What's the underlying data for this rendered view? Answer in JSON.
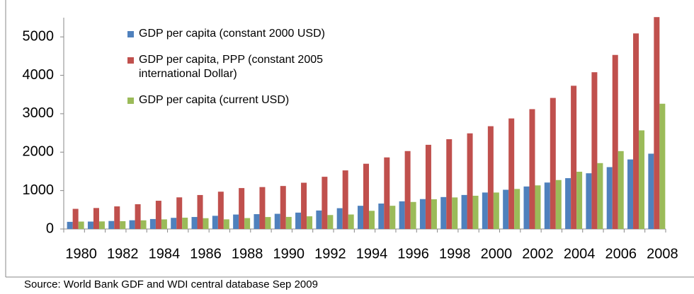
{
  "chart_data": {
    "type": "bar",
    "categories": [
      "1980",
      null,
      "1982",
      null,
      "1984",
      null,
      "1986",
      null,
      "1988",
      null,
      "1990",
      null,
      "1992",
      null,
      "1994",
      null,
      "1996",
      null,
      "1998",
      null,
      "2000",
      null,
      "2002",
      null,
      "2004",
      null,
      "2006",
      null,
      "2008"
    ],
    "series": [
      {
        "name": "GDP per capita (constant 2000 USD)",
        "color": "#4f81bd",
        "values": [
          186,
          193,
          208,
          227,
          259,
          290,
          312,
          343,
          376,
          386,
          395,
          426,
          481,
          541,
          604,
          662,
          720,
          778,
          831,
          885,
          949,
          1021,
          1106,
          1209,
          1323,
          1450,
          1610,
          1810,
          1960
        ]
      },
      {
        "name": "GDP per capita, PPP (constant 2005 international Dollar)",
        "color": "#c0504d",
        "values": [
          524,
          546,
          588,
          645,
          735,
          823,
          884,
          971,
          1065,
          1091,
          1119,
          1204,
          1359,
          1525,
          1698,
          1863,
          2028,
          2191,
          2337,
          2489,
          2675,
          2877,
          3119,
          3411,
          3728,
          4080,
          4530,
          5090,
          5515
        ]
      },
      {
        "name": "GDP per capita (current USD)",
        "color": "#9bbb59",
        "values": [
          193,
          197,
          203,
          225,
          250,
          294,
          281,
          251,
          284,
          311,
          314,
          330,
          363,
          377,
          473,
          604,
          703,
          774,
          821,
          865,
          949,
          1042,
          1135,
          1274,
          1490,
          1715,
          2027,
          2567,
          3260
        ]
      }
    ],
    "ylim": [
      0,
      5500
    ],
    "yticks": [
      0,
      1000,
      2000,
      3000,
      4000,
      5000
    ],
    "source": "Source: World Bank GDF and WDI central database Sep 2009"
  }
}
